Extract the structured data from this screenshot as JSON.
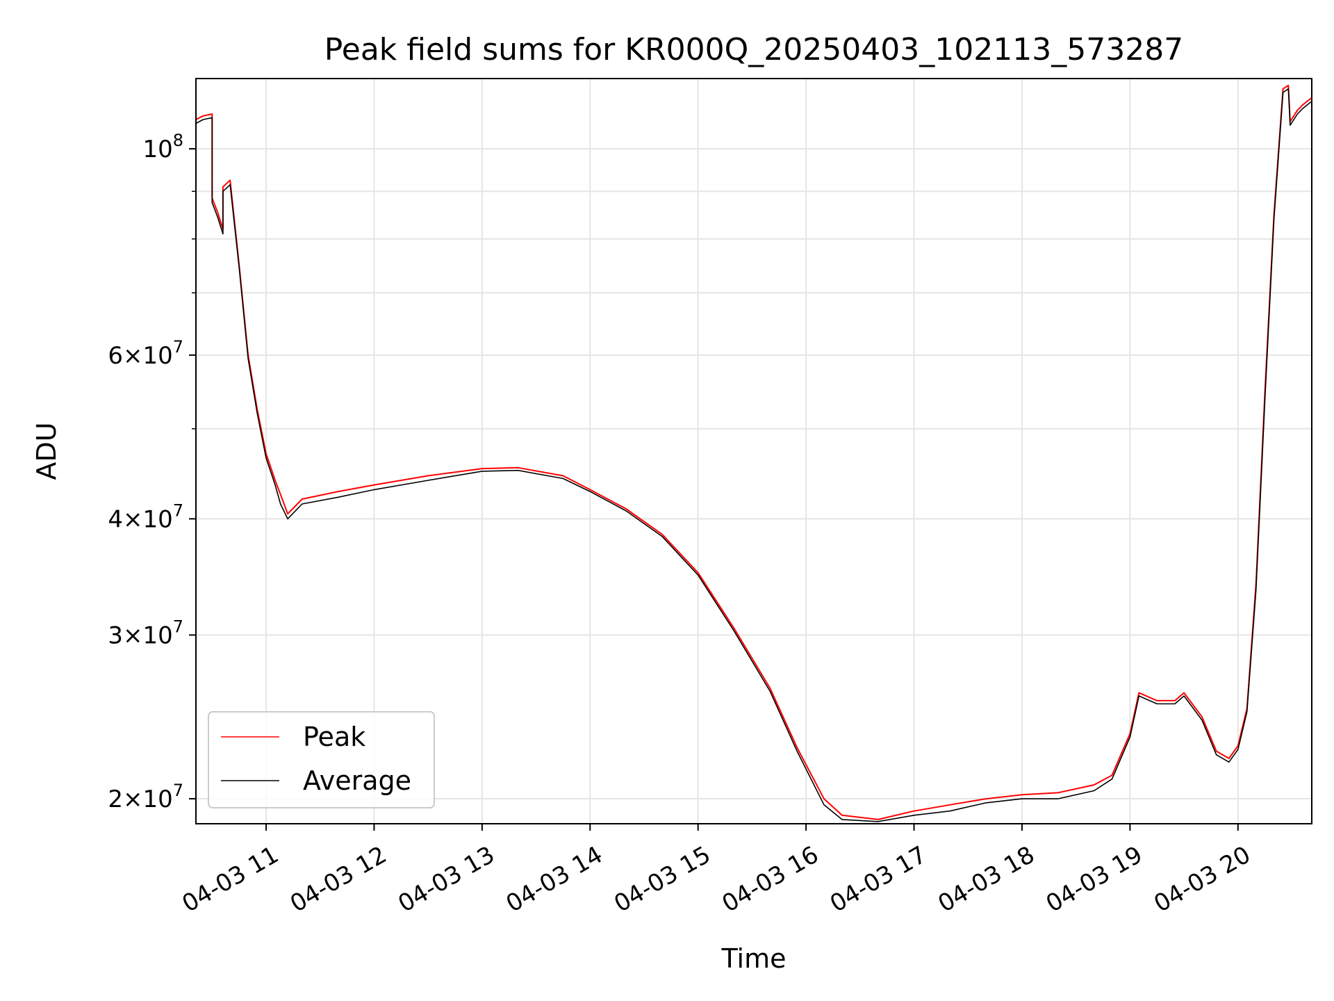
{
  "chart_data": {
    "type": "line",
    "title": "Peak field sums for KR000Q_20250403_102113_573287",
    "xlabel": "Time",
    "ylabel": "ADU",
    "yscale": "log",
    "ylim": [
      18800000,
      119000000
    ],
    "xlim": [
      "2025-04-03 10:21",
      "2025-04-03 20:41"
    ],
    "grid": true,
    "legend_position": "lower-left",
    "x_ticks": [
      {
        "value": "2025-04-03 11:00",
        "label": "04-03 11"
      },
      {
        "value": "2025-04-03 12:00",
        "label": "04-03 12"
      },
      {
        "value": "2025-04-03 13:00",
        "label": "04-03 13"
      },
      {
        "value": "2025-04-03 14:00",
        "label": "04-03 14"
      },
      {
        "value": "2025-04-03 15:00",
        "label": "04-03 15"
      },
      {
        "value": "2025-04-03 16:00",
        "label": "04-03 16"
      },
      {
        "value": "2025-04-03 17:00",
        "label": "04-03 17"
      },
      {
        "value": "2025-04-03 18:00",
        "label": "04-03 18"
      },
      {
        "value": "2025-04-03 19:00",
        "label": "04-03 19"
      },
      {
        "value": "2025-04-03 20:00",
        "label": "04-03 20"
      }
    ],
    "y_ticks": [
      {
        "value": 20000000,
        "mantissa": "2",
        "exponent": "7"
      },
      {
        "value": 30000000,
        "mantissa": "3",
        "exponent": "7"
      },
      {
        "value": 40000000,
        "mantissa": "4",
        "exponent": "7"
      },
      {
        "value": 60000000,
        "mantissa": "6",
        "exponent": "7"
      },
      {
        "value": 100000000,
        "mantissa": "",
        "exponent": "8"
      }
    ],
    "y_minor_ticks": [
      50000000,
      70000000,
      80000000,
      90000000
    ],
    "series": [
      {
        "name": "Peak",
        "color": "#ff0000",
        "x": [
          "2025-04-03 10:21",
          "2025-04-03 10:25",
          "2025-04-03 10:30",
          "2025-04-03 10:30",
          "2025-04-03 10:33",
          "2025-04-03 10:36",
          "2025-04-03 10:36",
          "2025-04-03 10:40",
          "2025-04-03 10:45",
          "2025-04-03 10:50",
          "2025-04-03 10:55",
          "2025-04-03 11:00",
          "2025-04-03 11:05",
          "2025-04-03 11:08",
          "2025-04-03 11:12",
          "2025-04-03 11:20",
          "2025-04-03 11:40",
          "2025-04-03 12:00",
          "2025-04-03 12:30",
          "2025-04-03 13:00",
          "2025-04-03 13:20",
          "2025-04-03 13:45",
          "2025-04-03 14:00",
          "2025-04-03 14:20",
          "2025-04-03 14:40",
          "2025-04-03 15:00",
          "2025-04-03 15:20",
          "2025-04-03 15:40",
          "2025-04-03 15:55",
          "2025-04-03 16:10",
          "2025-04-03 16:20",
          "2025-04-03 16:40",
          "2025-04-03 17:00",
          "2025-04-03 17:20",
          "2025-04-03 17:40",
          "2025-04-03 18:00",
          "2025-04-03 18:20",
          "2025-04-03 18:40",
          "2025-04-03 18:50",
          "2025-04-03 19:00",
          "2025-04-03 19:05",
          "2025-04-03 19:15",
          "2025-04-03 19:25",
          "2025-04-03 19:30",
          "2025-04-03 19:40",
          "2025-04-03 19:48",
          "2025-04-03 19:55",
          "2025-04-03 20:00",
          "2025-04-03 20:05",
          "2025-04-03 20:10",
          "2025-04-03 20:15",
          "2025-04-03 20:20",
          "2025-04-03 20:25",
          "2025-04-03 20:28",
          "2025-04-03 20:29",
          "2025-04-03 20:33",
          "2025-04-03 20:36",
          "2025-04-03 20:41"
        ],
        "y": [
          107500000,
          108500000,
          109000000,
          88500000,
          85500000,
          82000000,
          91000000,
          92500000,
          75000000,
          60000000,
          52500000,
          47000000,
          44000000,
          42500000,
          40500000,
          42000000,
          42800000,
          43500000,
          44500000,
          45300000,
          45400000,
          44500000,
          43000000,
          41000000,
          38500000,
          35000000,
          30500000,
          26300000,
          22700000,
          20000000,
          19200000,
          19000000,
          19400000,
          19700000,
          20000000,
          20200000,
          20300000,
          20700000,
          21200000,
          23500000,
          26000000,
          25500000,
          25500000,
          26000000,
          24500000,
          22500000,
          22100000,
          22800000,
          25000000,
          34000000,
          55000000,
          85000000,
          116000000,
          117000000,
          107000000,
          110000000,
          111500000,
          113500000
        ]
      },
      {
        "name": "Average",
        "color": "#000000",
        "x": [
          "2025-04-03 10:21",
          "2025-04-03 10:25",
          "2025-04-03 10:30",
          "2025-04-03 10:30",
          "2025-04-03 10:33",
          "2025-04-03 10:36",
          "2025-04-03 10:36",
          "2025-04-03 10:40",
          "2025-04-03 10:45",
          "2025-04-03 10:50",
          "2025-04-03 10:55",
          "2025-04-03 11:00",
          "2025-04-03 11:05",
          "2025-04-03 11:08",
          "2025-04-03 11:12",
          "2025-04-03 11:20",
          "2025-04-03 11:40",
          "2025-04-03 12:00",
          "2025-04-03 12:30",
          "2025-04-03 13:00",
          "2025-04-03 13:20",
          "2025-04-03 13:45",
          "2025-04-03 14:00",
          "2025-04-03 14:20",
          "2025-04-03 14:40",
          "2025-04-03 15:00",
          "2025-04-03 15:20",
          "2025-04-03 15:40",
          "2025-04-03 15:55",
          "2025-04-03 16:10",
          "2025-04-03 16:20",
          "2025-04-03 16:40",
          "2025-04-03 17:00",
          "2025-04-03 17:20",
          "2025-04-03 17:40",
          "2025-04-03 18:00",
          "2025-04-03 18:20",
          "2025-04-03 18:40",
          "2025-04-03 18:50",
          "2025-04-03 19:00",
          "2025-04-03 19:05",
          "2025-04-03 19:15",
          "2025-04-03 19:25",
          "2025-04-03 19:30",
          "2025-04-03 19:40",
          "2025-04-03 19:48",
          "2025-04-03 19:55",
          "2025-04-03 20:00",
          "2025-04-03 20:05",
          "2025-04-03 20:10",
          "2025-04-03 20:15",
          "2025-04-03 20:20",
          "2025-04-03 20:25",
          "2025-04-03 20:28",
          "2025-04-03 20:29",
          "2025-04-03 20:33",
          "2025-04-03 20:36",
          "2025-04-03 20:41"
        ],
        "y": [
          106500000,
          107500000,
          108000000,
          87500000,
          84500000,
          81000000,
          90000000,
          91500000,
          74500000,
          59500000,
          52000000,
          46500000,
          43500000,
          41500000,
          40000000,
          41500000,
          42200000,
          43000000,
          44000000,
          45000000,
          45100000,
          44200000,
          42800000,
          40800000,
          38300000,
          34800000,
          30300000,
          26100000,
          22500000,
          19700000,
          19000000,
          18900000,
          19200000,
          19400000,
          19800000,
          20000000,
          20000000,
          20400000,
          21000000,
          23300000,
          25800000,
          25300000,
          25300000,
          25800000,
          24300000,
          22300000,
          21900000,
          22600000,
          24800000,
          33500000,
          54000000,
          84000000,
          115000000,
          116000000,
          106000000,
          109000000,
          110500000,
          112500000
        ]
      }
    ],
    "legend": [
      {
        "label": "Peak",
        "color": "#ff0000"
      },
      {
        "label": "Average",
        "color": "#000000"
      }
    ],
    "colors": {
      "grid": "#e5e5e5",
      "axes": "#000000",
      "legend_border": "#cccccc"
    }
  }
}
